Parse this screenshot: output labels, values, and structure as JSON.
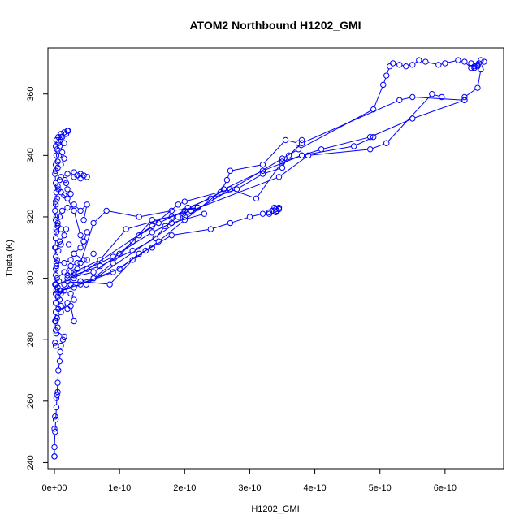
{
  "chart_data": {
    "type": "scatter",
    "title": "ATOM2 Northbound H1202_GMI",
    "xlabel": "H1202_GMI",
    "ylabel": "Theta (K)",
    "xlim": [
      -1e-11,
      6.9e-10
    ],
    "ylim": [
      238,
      375
    ],
    "x_ticks": [
      0,
      1e-10,
      2e-10,
      3e-10,
      4e-10,
      5e-10,
      6e-10
    ],
    "x_tick_labels": [
      "0e+00",
      "1e-10",
      "2e-10",
      "3e-10",
      "4e-10",
      "5e-10",
      "6e-10"
    ],
    "y_ticks": [
      240,
      260,
      280,
      300,
      320,
      340,
      360
    ],
    "y_tick_labels": [
      "240",
      "260",
      "280",
      "300",
      "320",
      "340",
      "360"
    ],
    "grid": false,
    "legend": "none",
    "series_color": "#0000ff",
    "marker": "open-circle",
    "line": "connected",
    "segments": [
      {
        "points": [
          [
            0,
            242
          ],
          [
            0,
            245
          ],
          [
            1e-12,
            250
          ],
          [
            2e-12,
            254
          ],
          [
            3e-12,
            258
          ],
          [
            4e-12,
            262
          ],
          [
            5e-12,
            266
          ],
          [
            6e-12,
            270
          ],
          [
            8e-12,
            273
          ],
          [
            9e-12,
            276
          ],
          [
            1e-11,
            278
          ],
          [
            1.3e-11,
            280
          ],
          [
            1.5e-11,
            281
          ],
          [
            2e-12,
            283
          ],
          [
            1e-12,
            286
          ],
          [
            2e-12,
            289
          ],
          [
            3e-12,
            292
          ],
          [
            2e-12,
            295
          ],
          [
            1e-12,
            298
          ],
          [
            2e-12,
            301
          ],
          [
            3e-12,
            304
          ],
          [
            2e-12,
            307
          ],
          [
            1e-12,
            310
          ],
          [
            2e-12,
            313
          ],
          [
            3e-12,
            316
          ],
          [
            2e-12,
            319
          ],
          [
            1e-12,
            322
          ],
          [
            2e-12,
            325
          ],
          [
            3e-12,
            328
          ],
          [
            2e-12,
            331
          ],
          [
            1e-12,
            334
          ],
          [
            2e-12,
            337
          ],
          [
            3e-12,
            340
          ],
          [
            2e-12,
            343
          ],
          [
            3e-12,
            345
          ],
          [
            6e-12,
            346
          ],
          [
            1e-11,
            347
          ],
          [
            1.5e-11,
            347.5
          ],
          [
            2e-11,
            348
          ]
        ]
      },
      {
        "points": [
          [
            2e-12,
            292
          ],
          [
            1e-11,
            291
          ],
          [
            2e-11,
            290
          ],
          [
            2.5e-11,
            291
          ],
          [
            3e-11,
            286
          ]
        ]
      },
      {
        "points": [
          [
            5e-12,
            294
          ],
          [
            1.5e-11,
            296
          ],
          [
            2.5e-11,
            298
          ],
          [
            4e-11,
            299
          ],
          [
            6e-11,
            300
          ],
          [
            1e-10,
            303
          ],
          [
            1.3e-10,
            308
          ],
          [
            1.5e-10,
            310
          ]
        ]
      },
      {
        "points": [
          [
            1e-11,
            296
          ],
          [
            3e-11,
            297
          ],
          [
            6e-11,
            300
          ],
          [
            9e-11,
            305
          ],
          [
            1.2e-10,
            312
          ],
          [
            1.5e-10,
            319
          ],
          [
            1.8e-10,
            320
          ],
          [
            2e-10,
            322
          ],
          [
            2.2e-10,
            323
          ]
        ]
      },
      {
        "points": [
          [
            1.5e-11,
            298
          ],
          [
            4e-11,
            299
          ],
          [
            8.5e-11,
            298
          ],
          [
            1.2e-10,
            306
          ],
          [
            1.6e-10,
            312
          ],
          [
            2e-10,
            319
          ],
          [
            2.6e-10,
            329
          ],
          [
            3.2e-10,
            335
          ],
          [
            3.8e-10,
            340
          ],
          [
            4.1e-10,
            342
          ],
          [
            4.85e-10,
            346
          ],
          [
            5.5e-10,
            352
          ],
          [
            6.3e-10,
            358
          ]
        ]
      },
      {
        "points": [
          [
            6.3e-10,
            358
          ],
          [
            5.5e-10,
            359
          ],
          [
            5.3e-10,
            358
          ],
          [
            3.8e-10,
            344
          ],
          [
            3.6e-10,
            340
          ],
          [
            3.5e-10,
            336
          ],
          [
            3.2e-10,
            334
          ],
          [
            2.8e-10,
            329
          ],
          [
            2.4e-10,
            326
          ],
          [
            2.05e-10,
            323
          ],
          [
            1.98e-10,
            321
          ]
        ]
      },
      {
        "points": [
          [
            2e-11,
            300
          ],
          [
            6e-11,
            302
          ],
          [
            1e-10,
            308
          ],
          [
            1.3e-10,
            314
          ],
          [
            1.6e-10,
            318
          ],
          [
            2e-10,
            322
          ],
          [
            2.55e-10,
            328
          ],
          [
            2.65e-10,
            332
          ],
          [
            2.7e-10,
            335
          ],
          [
            3.2e-10,
            337
          ],
          [
            3.55e-10,
            345
          ],
          [
            3.75e-10,
            344
          ],
          [
            3.8e-10,
            345
          ]
        ]
      },
      {
        "points": [
          [
            2.5e-11,
            302
          ],
          [
            5e-11,
            303
          ],
          [
            9e-11,
            307
          ],
          [
            1.5e-10,
            315
          ],
          [
            1.8e-10,
            318
          ],
          [
            2.3e-10,
            321
          ]
        ]
      },
      {
        "points": [
          [
            3e-11,
            301
          ],
          [
            7e-11,
            304
          ],
          [
            1.2e-10,
            309
          ],
          [
            1.55e-10,
            313
          ],
          [
            1.7e-10,
            317
          ],
          [
            1.9e-10,
            320
          ]
        ]
      },
      {
        "points": [
          [
            8e-12,
            296
          ],
          [
            4e-11,
            298
          ],
          [
            9e-11,
            302
          ],
          [
            1.4e-10,
            309
          ],
          [
            1.8e-10,
            314
          ],
          [
            2.4e-10,
            316
          ],
          [
            2.7e-10,
            318
          ],
          [
            3e-10,
            320
          ],
          [
            3.2e-10,
            321
          ],
          [
            3.3e-10,
            321.5
          ],
          [
            3.35e-10,
            322
          ],
          [
            3.4e-10,
            322.5
          ],
          [
            3.45e-10,
            323
          ]
        ]
      },
      {
        "points": [
          [
            4e-11,
            305
          ],
          [
            6e-11,
            318
          ],
          [
            8e-11,
            322
          ],
          [
            1.3e-10,
            320
          ],
          [
            1.8e-10,
            322
          ],
          [
            2.2e-10,
            323
          ]
        ]
      },
      {
        "points": [
          [
            3e-12,
            298
          ],
          [
            3e-11,
            300
          ],
          [
            1.5e-10,
            317
          ],
          [
            1.9e-10,
            324
          ],
          [
            2e-10,
            325
          ],
          [
            2.7e-10,
            329
          ],
          [
            3.1e-10,
            326
          ],
          [
            3.5e-10,
            338
          ],
          [
            3.8e-10,
            340
          ],
          [
            4.6e-10,
            343
          ],
          [
            4.9e-10,
            346
          ]
        ]
      },
      {
        "points": [
          [
            2e-12,
            298
          ],
          [
            2e-11,
            299
          ],
          [
            4.9e-11,
            298
          ],
          [
            2e-10,
            320
          ],
          [
            3.5e-10,
            339
          ],
          [
            3.75e-10,
            342
          ],
          [
            4.9e-10,
            355
          ],
          [
            5.05e-10,
            363
          ],
          [
            5.1e-10,
            366
          ],
          [
            5.15e-10,
            369
          ],
          [
            5.2e-10,
            370
          ],
          [
            5.3e-10,
            369.5
          ],
          [
            5.4e-10,
            369
          ],
          [
            5.5e-10,
            369.5
          ],
          [
            5.6e-10,
            371
          ],
          [
            5.7e-10,
            370.5
          ],
          [
            5.9e-10,
            369.5
          ],
          [
            6e-10,
            370
          ],
          [
            6.2e-10,
            371
          ],
          [
            6.3e-10,
            370.5
          ],
          [
            6.4e-10,
            368.5
          ],
          [
            6.5e-10,
            369
          ],
          [
            6.55e-10,
            371
          ],
          [
            6.6e-10,
            370.5
          ],
          [
            6.55e-10,
            368
          ],
          [
            6.5e-10,
            362
          ],
          [
            6.3e-10,
            359
          ],
          [
            5.95e-10,
            359
          ],
          [
            5.8e-10,
            360
          ],
          [
            5.1e-10,
            344
          ],
          [
            4.85e-10,
            342
          ],
          [
            3.9e-10,
            340
          ],
          [
            3.45e-10,
            333
          ],
          [
            2.1e-10,
            322
          ],
          [
            1.1e-10,
            316
          ],
          [
            7e-11,
            306
          ],
          [
            3e-11,
            302
          ]
        ]
      },
      {
        "points": [
          [
            6.4e-10,
            370
          ],
          [
            6.45e-10,
            368.5
          ],
          [
            6.5e-10,
            369.5
          ],
          [
            6.52e-10,
            370
          ],
          [
            6.45e-10,
            369
          ]
        ]
      },
      {
        "points": [
          [
            1e-11,
            333
          ],
          [
            2e-11,
            334
          ],
          [
            3e-11,
            334.5
          ],
          [
            3.5e-11,
            333.5
          ],
          [
            4e-11,
            334
          ],
          [
            4.5e-11,
            333.5
          ],
          [
            5e-11,
            333
          ],
          [
            4e-11,
            332.5
          ],
          [
            3e-11,
            333
          ]
        ]
      },
      {
        "points": [
          [
            1.5e-11,
            327
          ],
          [
            2.5e-11,
            327.5
          ],
          [
            2e-11,
            329
          ],
          [
            1.8e-11,
            331
          ],
          [
            1.6e-11,
            332
          ]
        ]
      },
      {
        "points": [
          [
            5e-12,
            330
          ],
          [
            1e-11,
            328
          ],
          [
            2e-11,
            326
          ],
          [
            3e-11,
            322
          ],
          [
            4e-11,
            314
          ],
          [
            4.5e-11,
            312
          ],
          [
            5e-11,
            315
          ]
        ]
      },
      {
        "points": [
          [
            5e-12,
            336
          ],
          [
            1e-11,
            337
          ],
          [
            1.5e-11,
            339
          ],
          [
            1.2e-11,
            341
          ],
          [
            8e-12,
            343
          ],
          [
            1.5e-11,
            344
          ],
          [
            1e-11,
            346
          ]
        ]
      },
      {
        "points": [
          [
            3e-12,
            305
          ],
          [
            1.5e-11,
            305
          ],
          [
            2.5e-11,
            306
          ],
          [
            3e-11,
            308
          ],
          [
            4e-11,
            310
          ],
          [
            4.5e-11,
            312
          ]
        ]
      },
      {
        "points": [
          [
            2e-12,
            310
          ],
          [
            8e-12,
            312
          ],
          [
            1.5e-11,
            314
          ],
          [
            1e-11,
            316
          ],
          [
            5e-12,
            318
          ]
        ]
      },
      {
        "points": [
          [
            3e-12,
            320
          ],
          [
            1.2e-11,
            322
          ],
          [
            2e-11,
            323
          ],
          [
            3e-11,
            324
          ],
          [
            4e-11,
            322
          ],
          [
            5e-11,
            324
          ],
          [
            4.5e-11,
            319
          ]
        ]
      },
      {
        "points": [
          [
            2e-12,
            286
          ],
          [
            1e-11,
            289
          ],
          [
            2e-11,
            292
          ],
          [
            3e-11,
            293
          ],
          [
            2.5e-11,
            295
          ],
          [
            1.5e-11,
            296
          ]
        ]
      },
      {
        "points": [
          [
            4e-12,
            300
          ],
          [
            1.5e-11,
            302
          ],
          [
            2.5e-11,
            304
          ],
          [
            3.5e-11,
            305
          ],
          [
            4.5e-11,
            306
          ],
          [
            3e-11,
            308
          ]
        ]
      }
    ],
    "extra_points": [
      [
        0,
        251
      ],
      [
        0,
        242
      ],
      [
        1e-12,
        255
      ],
      [
        3e-12,
        261
      ],
      [
        5e-12,
        263
      ],
      [
        2e-12,
        278
      ],
      [
        1e-12,
        279
      ],
      [
        3e-12,
        282
      ],
      [
        5e-12,
        284
      ],
      [
        4e-12,
        287
      ],
      [
        6e-12,
        290
      ],
      [
        8e-12,
        293
      ],
      [
        1e-11,
        295
      ],
      [
        3e-12,
        296
      ],
      [
        5e-12,
        297
      ],
      [
        7e-12,
        299
      ],
      [
        2e-12,
        303
      ],
      [
        4e-12,
        306
      ],
      [
        6e-12,
        309
      ],
      [
        1e-11,
        311
      ],
      [
        3e-12,
        315
      ],
      [
        5e-12,
        317
      ],
      [
        8e-12,
        320
      ],
      [
        2e-12,
        324
      ],
      [
        4e-12,
        326
      ],
      [
        6e-12,
        329
      ],
      [
        8e-12,
        332
      ],
      [
        2e-12,
        335
      ],
      [
        5e-12,
        338
      ],
      [
        7e-12,
        340
      ],
      [
        4e-12,
        342
      ],
      [
        6e-12,
        344
      ],
      [
        9e-12,
        345
      ],
      [
        1.2e-11,
        346
      ],
      [
        1.8e-11,
        347
      ],
      [
        2.1e-11,
        348
      ],
      [
        2e-11,
        301
      ],
      [
        3.5e-11,
        303
      ],
      [
        5e-11,
        306
      ],
      [
        6e-11,
        308
      ],
      [
        2.2e-11,
        311
      ],
      [
        1.8e-11,
        316
      ],
      [
        3.3e-10,
        321
      ],
      [
        3.35e-10,
        322
      ],
      [
        3.38e-10,
        323
      ],
      [
        3.42e-10,
        322
      ],
      [
        3.45e-10,
        322.5
      ],
      [
        3.4e-10,
        321.5
      ]
    ]
  }
}
